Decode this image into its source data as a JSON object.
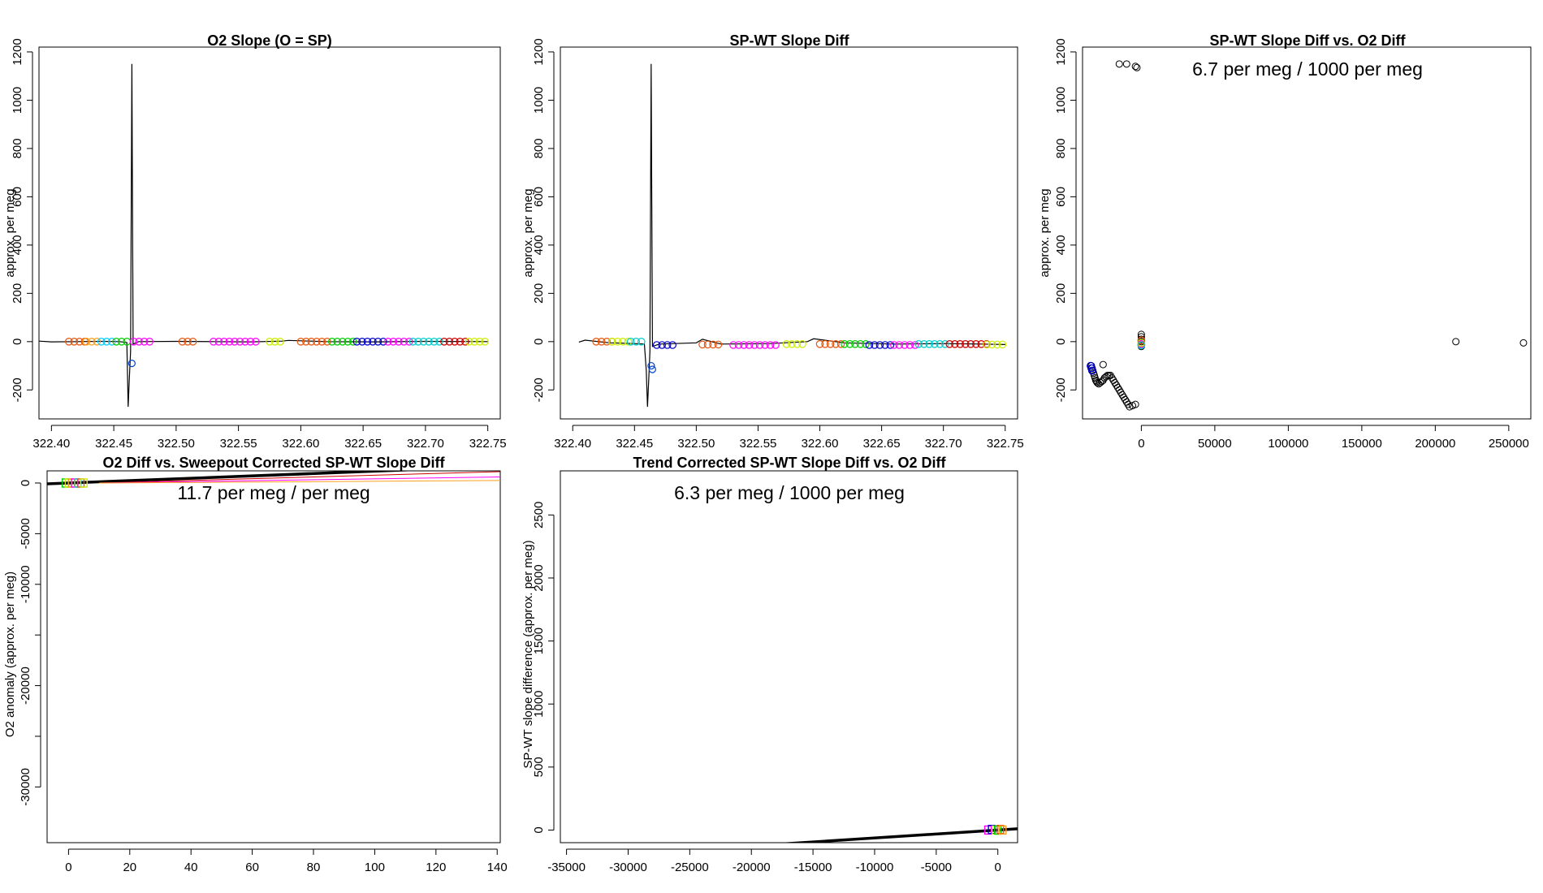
{
  "chart_data": [
    {
      "type": "line",
      "title": "O2 Slope (O = SP)",
      "xlabel": "",
      "ylabel": "approx. per meg",
      "xlim": [
        322.39,
        322.76
      ],
      "ylim": [
        -320,
        1220
      ],
      "x_ticks": [
        "322.40",
        "322.45",
        "322.50",
        "322.55",
        "322.60",
        "322.65",
        "322.70",
        "322.75"
      ],
      "y_ticks": [
        "-200",
        "0",
        "200",
        "400",
        "600",
        "800",
        "1000",
        "1200"
      ],
      "series": [
        {
          "values": [
            [
              322.39,
              2
            ],
            [
              322.4,
              -1
            ],
            [
              322.42,
              0
            ],
            [
              322.44,
              1
            ],
            [
              322.455,
              0
            ],
            [
              322.4605,
              -4
            ],
            [
              322.4615,
              -270
            ],
            [
              322.4625,
              -150
            ],
            [
              322.4635,
              -40
            ],
            [
              322.4645,
              1150
            ],
            [
              322.4655,
              -10
            ],
            [
              322.47,
              0
            ],
            [
              322.5,
              1
            ],
            [
              322.53,
              0
            ],
            [
              322.56,
              -1
            ],
            [
              322.585,
              2
            ],
            [
              322.59,
              5
            ],
            [
              322.62,
              0
            ],
            [
              322.66,
              -1
            ],
            [
              322.7,
              1
            ],
            [
              322.75,
              0
            ]
          ]
        }
      ],
      "marker_groups": [
        {
          "x_range": [
            322.414,
            322.428
          ],
          "y": 0,
          "color": "#e6550d"
        },
        {
          "x_range": [
            322.428,
            322.44
          ],
          "y": 0,
          "color": "#f8a01e"
        },
        {
          "x_range": [
            322.44,
            322.452
          ],
          "y": 0,
          "color": "#00ccff"
        },
        {
          "x_range": [
            322.452,
            322.462
          ],
          "y": 0,
          "color": "#00cc00"
        },
        {
          "x_range": [
            322.466,
            322.48
          ],
          "y": 0,
          "color": "#ff00ff"
        },
        {
          "x_range": [
            322.505,
            322.516
          ],
          "y": 0,
          "color": "#e6550d"
        },
        {
          "x_range": [
            322.53,
            322.568
          ],
          "y": 0,
          "color": "#ff00ff"
        },
        {
          "x_range": [
            322.575,
            322.585
          ],
          "y": 0,
          "color": "#ccee00"
        },
        {
          "x_range": [
            322.6,
            322.625
          ],
          "y": 0,
          "color": "#e6550d"
        },
        {
          "x_range": [
            322.625,
            322.645
          ],
          "y": 0,
          "color": "#00cc00"
        },
        {
          "x_range": [
            322.645,
            322.67
          ],
          "y": 0,
          "color": "#0000cc"
        },
        {
          "x_range": [
            322.67,
            322.69
          ],
          "y": 0,
          "color": "#ff00ff"
        },
        {
          "x_range": [
            322.69,
            322.715
          ],
          "y": 0,
          "color": "#00cccc"
        },
        {
          "x_range": [
            322.715,
            322.735
          ],
          "y": 0,
          "color": "#cc0000"
        },
        {
          "x_range": [
            322.735,
            322.75
          ],
          "y": 0,
          "color": "#ccee00"
        }
      ],
      "extra_points": [
        [
          322.4645,
          -90
        ]
      ]
    },
    {
      "type": "line",
      "title": "SP-WT Slope Diff",
      "xlabel": "",
      "ylabel": "approx. per meg",
      "xlim": [
        322.39,
        322.76
      ],
      "ylim": [
        -320,
        1220
      ],
      "x_ticks": [
        "322.40",
        "322.45",
        "322.50",
        "322.55",
        "322.60",
        "322.65",
        "322.70",
        "322.75"
      ],
      "y_ticks": [
        "-200",
        "0",
        "200",
        "400",
        "600",
        "800",
        "1000",
        "1200"
      ],
      "series": [
        {
          "values": [
            [
              322.405,
              -2
            ],
            [
              322.41,
              6
            ],
            [
              322.43,
              -5
            ],
            [
              322.45,
              -8
            ],
            [
              322.458,
              -10
            ],
            [
              322.4595,
              -120
            ],
            [
              322.4605,
              -270
            ],
            [
              322.4615,
              -160
            ],
            [
              322.4625,
              -40
            ],
            [
              322.4635,
              1150
            ],
            [
              322.4645,
              -20
            ],
            [
              322.47,
              -10
            ],
            [
              322.5,
              -5
            ],
            [
              322.505,
              10
            ],
            [
              322.52,
              -10
            ],
            [
              322.56,
              -8
            ],
            [
              322.59,
              0
            ],
            [
              322.595,
              12
            ],
            [
              322.62,
              -5
            ],
            [
              322.66,
              -10
            ],
            [
              322.7,
              -8
            ],
            [
              322.73,
              -10
            ],
            [
              322.75,
              -12
            ]
          ]
        }
      ],
      "marker_groups": [
        {
          "x_range": [
            322.419,
            322.432
          ],
          "y": 0,
          "color": "#e6550d"
        },
        {
          "x_range": [
            322.432,
            322.447
          ],
          "y": 0,
          "color": "#ccee00"
        },
        {
          "x_range": [
            322.447,
            322.458
          ],
          "y": 0,
          "color": "#00cccc"
        },
        {
          "x_range": [
            322.468,
            322.485
          ],
          "y": -14,
          "color": "#0000cc"
        },
        {
          "x_range": [
            322.505,
            322.52
          ],
          "y": -12,
          "color": "#e6550d"
        },
        {
          "x_range": [
            322.53,
            322.568
          ],
          "y": -14,
          "color": "#ff00ff"
        },
        {
          "x_range": [
            322.573,
            322.59
          ],
          "y": -10,
          "color": "#ccee00"
        },
        {
          "x_range": [
            322.6,
            322.62
          ],
          "y": -10,
          "color": "#e6550d"
        },
        {
          "x_range": [
            322.62,
            322.64
          ],
          "y": -10,
          "color": "#00cc00"
        },
        {
          "x_range": [
            322.64,
            322.66
          ],
          "y": -14,
          "color": "#0000cc"
        },
        {
          "x_range": [
            322.66,
            322.68
          ],
          "y": -14,
          "color": "#ff00ff"
        },
        {
          "x_range": [
            322.68,
            322.705
          ],
          "y": -10,
          "color": "#00cccc"
        },
        {
          "x_range": [
            322.705,
            322.735
          ],
          "y": -10,
          "color": "#cc0000"
        },
        {
          "x_range": [
            322.735,
            322.75
          ],
          "y": -12,
          "color": "#ccee00"
        }
      ],
      "extra_points": [
        [
          322.4635,
          -100
        ],
        [
          322.4645,
          -115
        ]
      ]
    },
    {
      "type": "scatter",
      "title": "SP-WT Slope Diff vs. O2 Diff",
      "annotation": "6.7 per meg / 1000 per meg",
      "xlabel": "",
      "ylabel": "approx. per meg",
      "xlim": [
        -40000,
        265000
      ],
      "ylim": [
        -320,
        1220
      ],
      "x_ticks": [
        "0",
        "50000",
        "100000",
        "150000",
        "200000",
        "250000"
      ],
      "y_ticks": [
        "-200",
        "0",
        "200",
        "400",
        "600",
        "800",
        "1000",
        "1200"
      ],
      "points": [
        [
          -15000,
          1150
        ],
        [
          -10000,
          1150
        ],
        [
          -4000,
          1140
        ],
        [
          -3000,
          1135
        ],
        [
          214000,
          0
        ],
        [
          260000,
          -5
        ],
        [
          -34000,
          -100
        ],
        [
          -33500,
          -110
        ],
        [
          -33000,
          -120
        ],
        [
          -32500,
          -130
        ],
        [
          -32000,
          -140
        ],
        [
          -31500,
          -150
        ],
        [
          -31000,
          -160
        ],
        [
          -30500,
          -165
        ],
        [
          -30000,
          -170
        ],
        [
          -29000,
          -175
        ],
        [
          -28000,
          -170
        ],
        [
          -27000,
          -165
        ],
        [
          -26000,
          -160
        ],
        [
          -25000,
          -150
        ],
        [
          -24000,
          -145
        ],
        [
          -23000,
          -140
        ],
        [
          -22000,
          -140
        ],
        [
          -21000,
          -140
        ],
        [
          -26000,
          -95
        ],
        [
          -20000,
          -150
        ],
        [
          -19000,
          -160
        ],
        [
          -18000,
          -170
        ],
        [
          -17000,
          -180
        ],
        [
          -16000,
          -190
        ],
        [
          -15000,
          -200
        ],
        [
          -14000,
          -210
        ],
        [
          -13000,
          -220
        ],
        [
          -12000,
          -230
        ],
        [
          -11000,
          -240
        ],
        [
          -10000,
          -250
        ],
        [
          -9000,
          -260
        ],
        [
          -8000,
          -270
        ],
        [
          -6000,
          -265
        ],
        [
          -4000,
          -260
        ],
        [
          0,
          30
        ],
        [
          0,
          20
        ],
        [
          0,
          10
        ],
        [
          0,
          0
        ],
        [
          0,
          -10
        ],
        [
          0,
          -20
        ]
      ],
      "colored_points": [
        {
          "x": -34500,
          "y": -100,
          "color": "#0000cc"
        },
        {
          "x": -34000,
          "y": -110,
          "color": "#0000cc"
        },
        {
          "x": -33500,
          "y": -120,
          "color": "#0000cc"
        },
        {
          "x": 0,
          "y": -10,
          "color": "#ff00ff"
        },
        {
          "x": 0,
          "y": -5,
          "color": "#ccee00"
        },
        {
          "x": 0,
          "y": 5,
          "color": "#e6550d"
        },
        {
          "x": 0,
          "y": -15,
          "color": "#00cccc"
        }
      ]
    },
    {
      "type": "scatter",
      "title": "O2 Diff vs. Sweepout Corrected SP-WT Slope Diff",
      "annotation": "11.7 per meg / per meg",
      "xlabel": "",
      "ylabel": "O2 anomaly (approx. per meg)",
      "xlim": [
        -7,
        141
      ],
      "ylim": [
        -35500,
        1200
      ],
      "x_ticks": [
        "0",
        "20",
        "40",
        "60",
        "80",
        "100",
        "120",
        "140"
      ],
      "y_ticks": [
        "-30000",
        "-20000",
        "-10000",
        "-5000",
        "0"
      ],
      "y_tick_values": [
        -30000,
        -25000,
        -20000,
        -15000,
        -10000,
        -5000,
        0
      ],
      "y_tick_labels": [
        "-30000",
        "",
        "-20000",
        "",
        "-10000",
        "-5000",
        "0"
      ],
      "fit_lines": [
        {
          "from": [
            -7,
            -80
          ],
          "to": [
            141,
            1650
          ],
          "color": "#000000",
          "width": 3.5
        },
        {
          "from": [
            10,
            0
          ],
          "to": [
            141,
            1120
          ],
          "color": "#cc0000",
          "width": 1
        },
        {
          "from": [
            10,
            0
          ],
          "to": [
            141,
            600
          ],
          "color": "#ff00ff",
          "width": 1
        },
        {
          "from": [
            10,
            0
          ],
          "to": [
            141,
            250
          ],
          "color": "#f8a01e",
          "width": 1
        }
      ],
      "points_colored": [
        {
          "x": -1,
          "y": 0,
          "color": "#00cc00"
        },
        {
          "x": 0,
          "y": 0,
          "color": "#ccee00"
        },
        {
          "x": 1,
          "y": 0,
          "color": "#f8a01e"
        },
        {
          "x": 2,
          "y": 0,
          "color": "#ff00ff"
        },
        {
          "x": 3,
          "y": 0,
          "color": "#00cccc"
        },
        {
          "x": 4,
          "y": 0,
          "color": "#e6550d"
        },
        {
          "x": 5,
          "y": 0,
          "color": "#ccee00"
        }
      ]
    },
    {
      "type": "scatter",
      "title": "Trend Corrected SP-WT Slope Diff vs. O2 Diff",
      "annotation": "6.3 per meg / 1000 per meg",
      "xlabel": "",
      "ylabel": "SP-WT slope difference (approx. per meg)",
      "xlim": [
        -35500,
        1600
      ],
      "ylim": [
        -100,
        2850
      ],
      "x_ticks": [
        "-35000",
        "-30000",
        "-25000",
        "-20000",
        "-15000",
        "-10000",
        "-5000",
        "0"
      ],
      "y_ticks": [
        "0",
        "500",
        "1000",
        "1500",
        "2000",
        "2500"
      ],
      "fit_lines": [
        {
          "from": [
            -35500,
            -223
          ],
          "to": [
            1600,
            10
          ],
          "color": "#000000",
          "width": 3.5
        }
      ],
      "points_colored": [
        {
          "x": -800,
          "y": 0,
          "color": "#ff00ff"
        },
        {
          "x": -500,
          "y": 5,
          "color": "#0000cc"
        },
        {
          "x": -200,
          "y": 0,
          "color": "#ccee00"
        },
        {
          "x": 0,
          "y": 0,
          "color": "#00cc00"
        },
        {
          "x": 200,
          "y": 5,
          "color": "#e6550d"
        },
        {
          "x": 400,
          "y": 0,
          "color": "#f8a01e"
        }
      ]
    }
  ]
}
